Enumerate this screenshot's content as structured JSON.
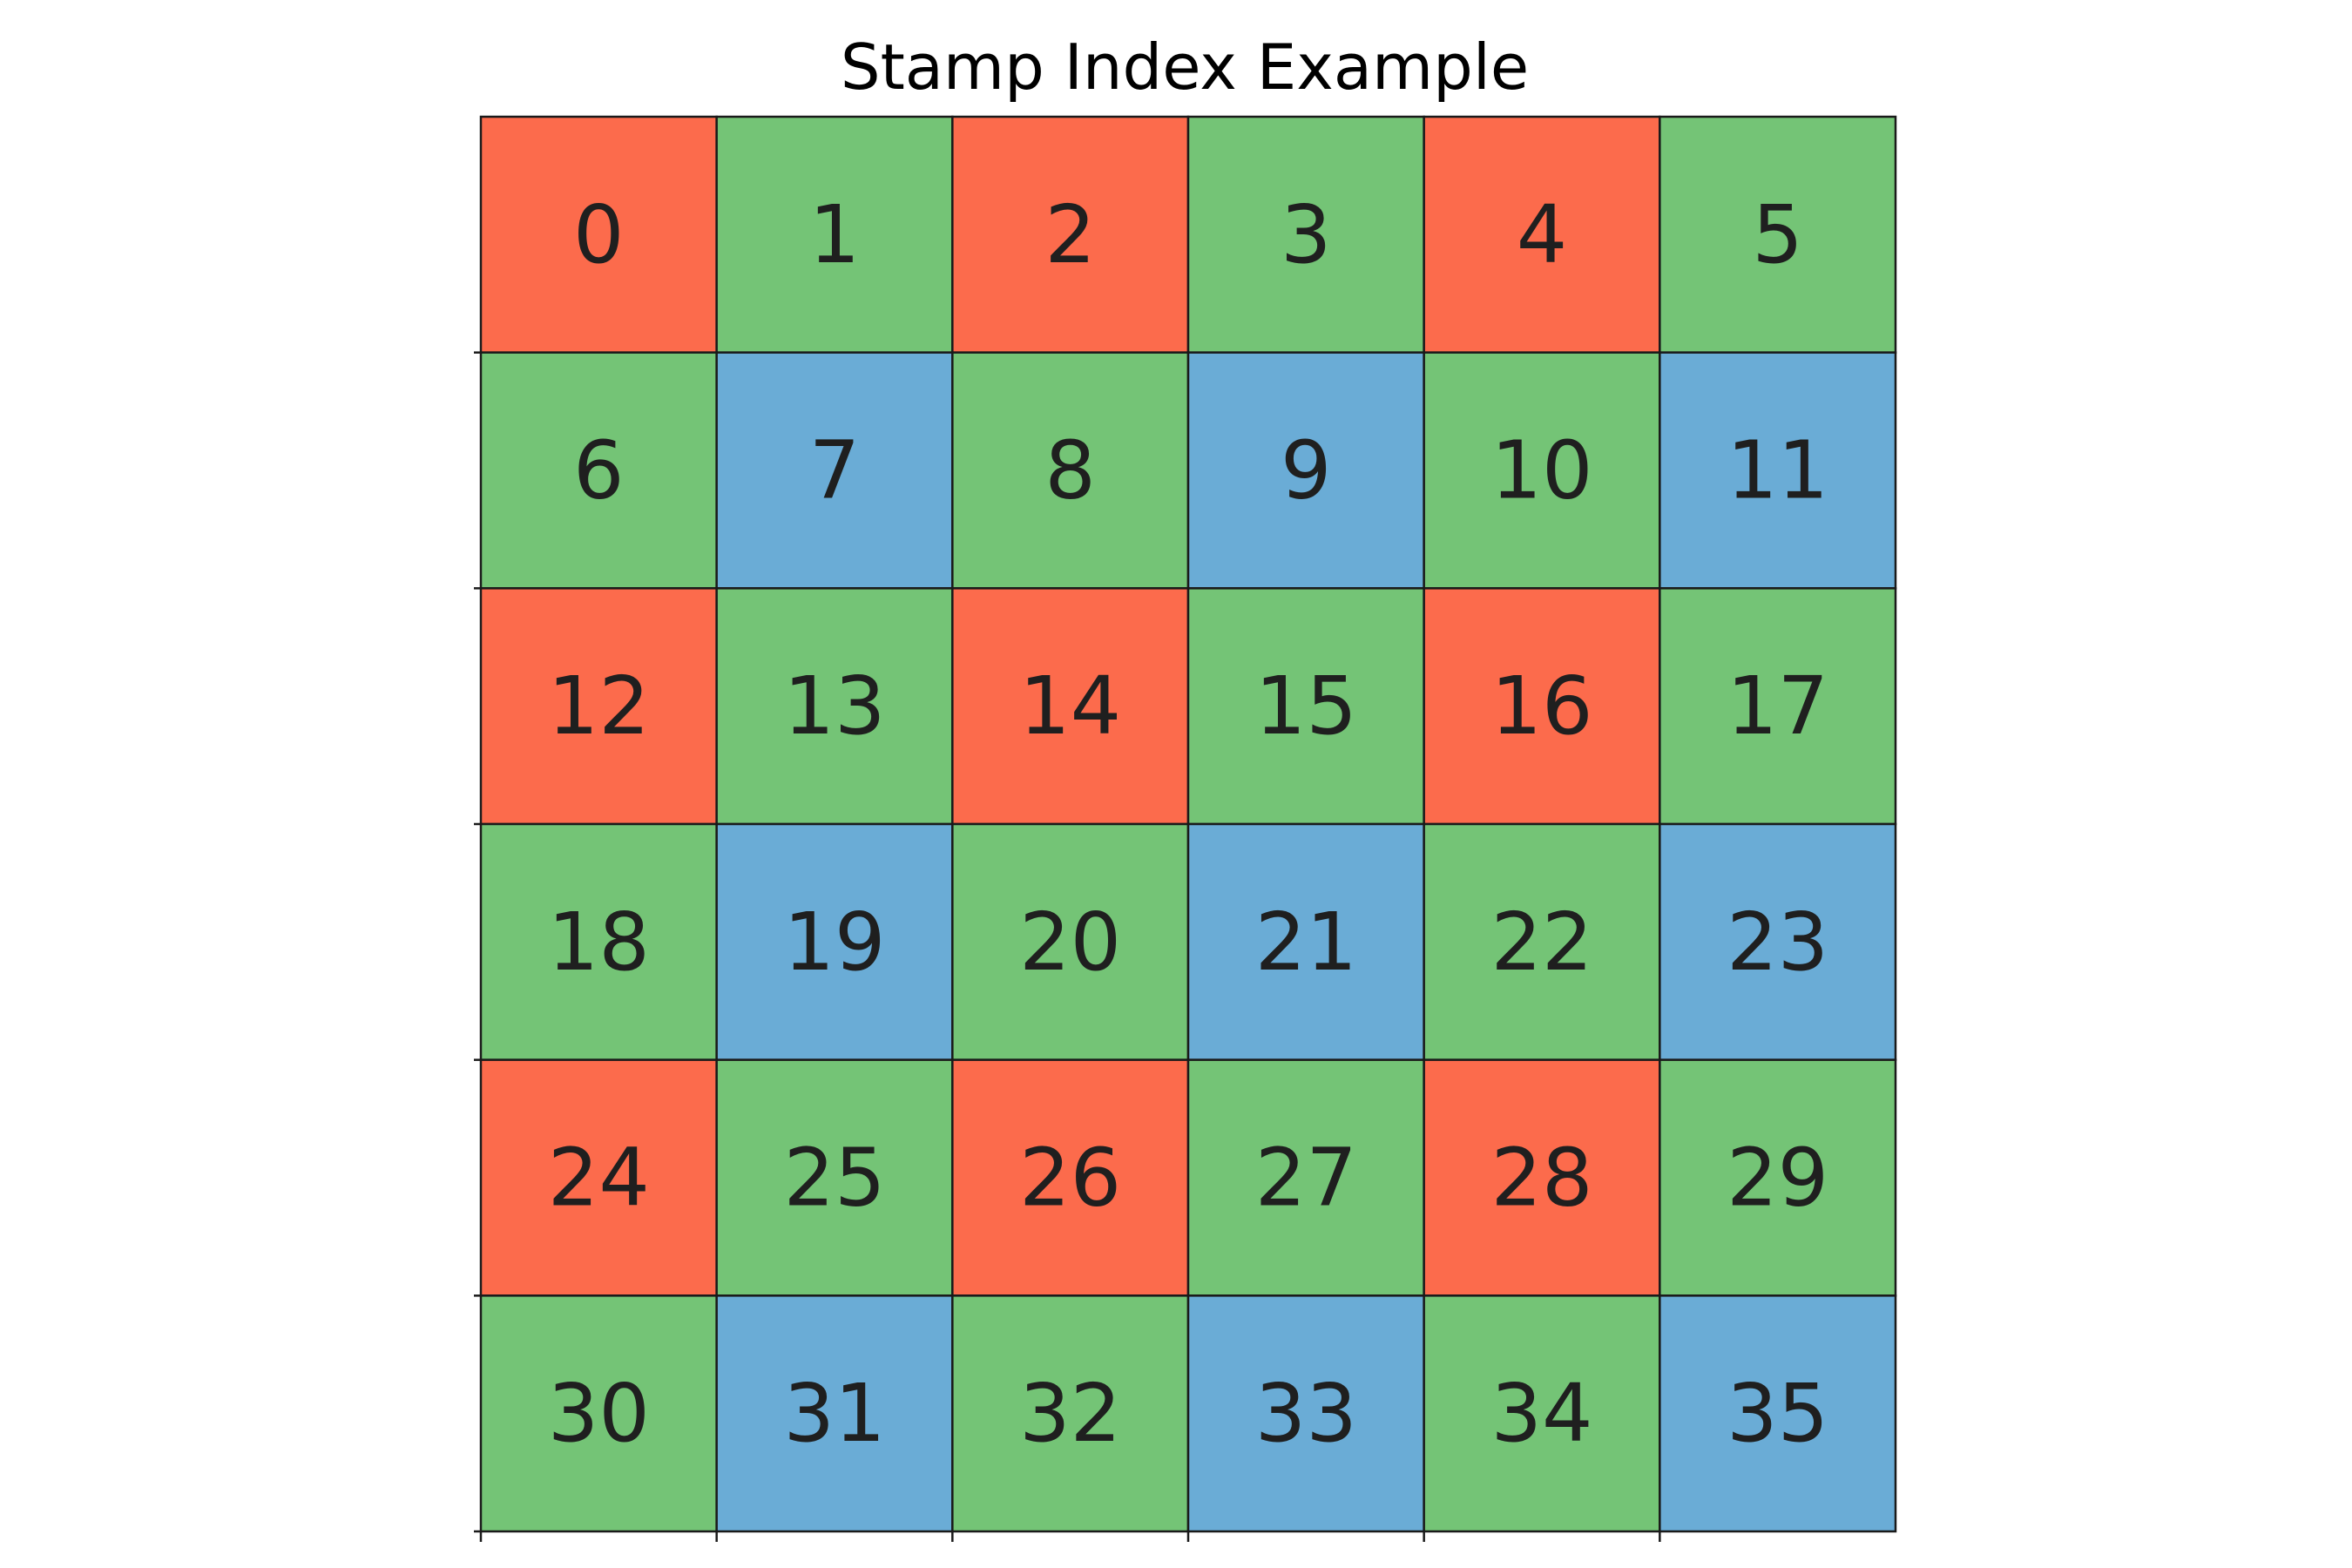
{
  "chart_data": {
    "type": "heatmap",
    "title": "Stamp Index Example",
    "rows": 6,
    "cols": 6,
    "cells": [
      [
        {
          "label": "0",
          "color": "red"
        },
        {
          "label": "1",
          "color": "green"
        },
        {
          "label": "2",
          "color": "red"
        },
        {
          "label": "3",
          "color": "green"
        },
        {
          "label": "4",
          "color": "red"
        },
        {
          "label": "5",
          "color": "green"
        }
      ],
      [
        {
          "label": "6",
          "color": "green"
        },
        {
          "label": "7",
          "color": "blue"
        },
        {
          "label": "8",
          "color": "green"
        },
        {
          "label": "9",
          "color": "blue"
        },
        {
          "label": "10",
          "color": "green"
        },
        {
          "label": "11",
          "color": "blue"
        }
      ],
      [
        {
          "label": "12",
          "color": "red"
        },
        {
          "label": "13",
          "color": "green"
        },
        {
          "label": "14",
          "color": "red"
        },
        {
          "label": "15",
          "color": "green"
        },
        {
          "label": "16",
          "color": "red"
        },
        {
          "label": "17",
          "color": "green"
        }
      ],
      [
        {
          "label": "18",
          "color": "green"
        },
        {
          "label": "19",
          "color": "blue"
        },
        {
          "label": "20",
          "color": "green"
        },
        {
          "label": "21",
          "color": "blue"
        },
        {
          "label": "22",
          "color": "green"
        },
        {
          "label": "23",
          "color": "blue"
        }
      ],
      [
        {
          "label": "24",
          "color": "red"
        },
        {
          "label": "25",
          "color": "green"
        },
        {
          "label": "26",
          "color": "red"
        },
        {
          "label": "27",
          "color": "green"
        },
        {
          "label": "28",
          "color": "red"
        },
        {
          "label": "29",
          "color": "green"
        }
      ],
      [
        {
          "label": "30",
          "color": "green"
        },
        {
          "label": "31",
          "color": "blue"
        },
        {
          "label": "32",
          "color": "green"
        },
        {
          "label": "33",
          "color": "blue"
        },
        {
          "label": "34",
          "color": "green"
        },
        {
          "label": "35",
          "color": "blue"
        }
      ]
    ],
    "colors": {
      "red": "#fc6b4c",
      "green": "#74c476",
      "blue": "#6aacd6",
      "border": "#1a1a1a"
    },
    "grid": true,
    "legend": "none"
  }
}
